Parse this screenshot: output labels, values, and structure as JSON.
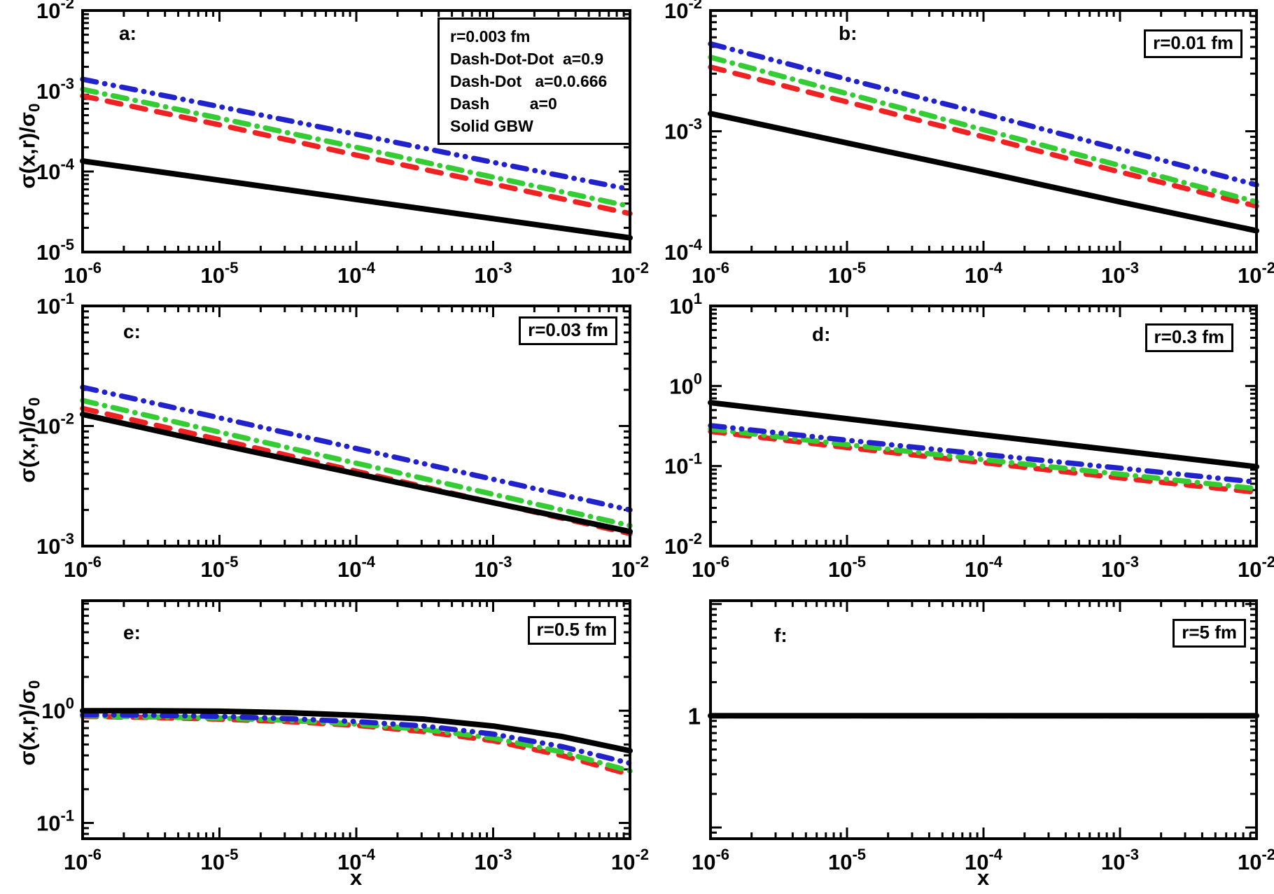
{
  "figure": {
    "x_axis_title": "x",
    "y_axis_title": {
      "main": "σ(x,r)/σ",
      "sub": "0"
    }
  },
  "legend": {
    "lines": [
      "r=0.003 fm",
      "Dash-Dot-Dot  a=0.9",
      "Dash-Dot   a=0.0.666",
      "Dash         a=0",
      "Solid GBW"
    ]
  },
  "colors": {
    "dash_dot_dot": "#2222cc",
    "dash_dot": "#33cc33",
    "dash": "#ee2222",
    "solid": "#000000"
  },
  "chart_data": [
    {
      "id": "a",
      "type": "line",
      "panel_label": "a:",
      "box_label": "r=0.003 fm (in legend)",
      "x_axis": {
        "scale": "log",
        "range_exp": [
          -6,
          -2
        ],
        "tick_exps": [
          -6,
          -5,
          -4,
          -3,
          -2
        ]
      },
      "y_axis": {
        "scale": "log",
        "range_exp": [
          -5,
          -2
        ],
        "tick_exps": [
          -5,
          -4,
          -3,
          -2
        ]
      },
      "series": [
        {
          "name": "Dash a=0",
          "style": "dash",
          "color": "#ee2222",
          "x_exp": [
            -6,
            -5,
            -4,
            -3,
            -2
          ],
          "y": [
            0.00087,
            0.00038,
            0.00016,
            7e-05,
            3e-05
          ]
        },
        {
          "name": "Dash-Dot a=0.0.666",
          "style": "dash-dot",
          "color": "#33cc33",
          "x_exp": [
            -6,
            -5,
            -4,
            -3,
            -2
          ],
          "y": [
            0.00105,
            0.00046,
            0.0002,
            8.5e-05,
            3.7e-05
          ]
        },
        {
          "name": "Dash-Dot-Dot a=0.9",
          "style": "dash-dot-dot",
          "color": "#2222cc",
          "x_exp": [
            -6,
            -5,
            -4,
            -3,
            -2
          ],
          "y": [
            0.0014,
            0.00064,
            0.00029,
            0.00013,
            6e-05
          ]
        },
        {
          "name": "Solid GBW",
          "style": "solid",
          "color": "#000000",
          "x_exp": [
            -6,
            -5,
            -4,
            -3,
            -2
          ],
          "y": [
            0.000135,
            7.8e-05,
            4.5e-05,
            2.6e-05,
            1.5e-05
          ]
        }
      ]
    },
    {
      "id": "b",
      "type": "line",
      "panel_label": "b:",
      "box_label": "r=0.01 fm",
      "x_axis": {
        "scale": "log",
        "range_exp": [
          -6,
          -2
        ],
        "tick_exps": [
          -6,
          -5,
          -4,
          -3,
          -2
        ]
      },
      "y_axis": {
        "scale": "log",
        "range_exp": [
          -4,
          -2
        ],
        "tick_exps": [
          -4,
          -3,
          -2
        ]
      },
      "series": [
        {
          "name": "Dash a=0",
          "style": "dash",
          "color": "#ee2222",
          "x_exp": [
            -6,
            -5,
            -4,
            -3,
            -2
          ],
          "y": [
            0.0034,
            0.00175,
            0.0009,
            0.00046,
            0.00024
          ]
        },
        {
          "name": "Dash-Dot a=0.0.666",
          "style": "dash-dot",
          "color": "#33cc33",
          "x_exp": [
            -6,
            -5,
            -4,
            -3,
            -2
          ],
          "y": [
            0.0041,
            0.00205,
            0.00103,
            0.00052,
            0.00026
          ]
        },
        {
          "name": "Dash-Dot-Dot a=0.9",
          "style": "dash-dot-dot",
          "color": "#2222cc",
          "x_exp": [
            -6,
            -5,
            -4,
            -3,
            -2
          ],
          "y": [
            0.0053,
            0.0027,
            0.0014,
            0.00071,
            0.00036
          ]
        },
        {
          "name": "Solid GBW",
          "style": "solid",
          "color": "#000000",
          "x_exp": [
            -6,
            -5,
            -4,
            -3,
            -2
          ],
          "y": [
            0.0014,
            0.0008,
            0.00046,
            0.00026,
            0.00015
          ]
        }
      ]
    },
    {
      "id": "c",
      "type": "line",
      "panel_label": "c:",
      "box_label": "r=0.03 fm",
      "x_axis": {
        "scale": "log",
        "range_exp": [
          -6,
          -2
        ],
        "tick_exps": [
          -6,
          -5,
          -4,
          -3,
          -2
        ]
      },
      "y_axis": {
        "scale": "log",
        "range_exp": [
          -3,
          -1
        ],
        "tick_exps": [
          -3,
          -2,
          -1
        ]
      },
      "series": [
        {
          "name": "Dash a=0",
          "style": "dash",
          "color": "#ee2222",
          "x_exp": [
            -6,
            -5,
            -4,
            -3,
            -2
          ],
          "y": [
            0.014,
            0.0077,
            0.0042,
            0.0023,
            0.00127
          ]
        },
        {
          "name": "Dash-Dot a=0.0.666",
          "style": "dash-dot",
          "color": "#33cc33",
          "x_exp": [
            -6,
            -5,
            -4,
            -3,
            -2
          ],
          "y": [
            0.0163,
            0.0089,
            0.0049,
            0.0027,
            0.00148
          ]
        },
        {
          "name": "Dash-Dot-Dot a=0.9",
          "style": "dash-dot-dot",
          "color": "#2222cc",
          "x_exp": [
            -6,
            -5,
            -4,
            -3,
            -2
          ],
          "y": [
            0.021,
            0.0117,
            0.0065,
            0.0036,
            0.002
          ]
        },
        {
          "name": "Solid GBW",
          "style": "solid",
          "color": "#000000",
          "x_exp": [
            -6,
            -5,
            -4,
            -3,
            -2
          ],
          "y": [
            0.0125,
            0.007,
            0.004,
            0.0023,
            0.00132
          ]
        }
      ]
    },
    {
      "id": "d",
      "type": "line",
      "panel_label": "d:",
      "box_label": "r=0.3 fm",
      "x_axis": {
        "scale": "log",
        "range_exp": [
          -6,
          -2
        ],
        "tick_exps": [
          -6,
          -5,
          -4,
          -3,
          -2
        ]
      },
      "y_axis": {
        "scale": "log",
        "range_exp": [
          -2,
          1
        ],
        "tick_exps": [
          -2,
          -1,
          0,
          1
        ]
      },
      "series": [
        {
          "name": "Dash a=0",
          "style": "dash",
          "color": "#ee2222",
          "x_exp": [
            -6,
            -5,
            -4,
            -3,
            -2
          ],
          "y": [
            0.27,
            0.17,
            0.11,
            0.071,
            0.047
          ]
        },
        {
          "name": "Dash-Dot a=0.0.666",
          "style": "dash-dot",
          "color": "#33cc33",
          "x_exp": [
            -6,
            -5,
            -4,
            -3,
            -2
          ],
          "y": [
            0.29,
            0.185,
            0.12,
            0.079,
            0.052
          ]
        },
        {
          "name": "Dash-Dot-Dot a=0.9",
          "style": "dash-dot-dot",
          "color": "#2222cc",
          "x_exp": [
            -6,
            -5,
            -4,
            -3,
            -2
          ],
          "y": [
            0.32,
            0.21,
            0.14,
            0.094,
            0.063
          ]
        },
        {
          "name": "Solid GBW",
          "style": "solid",
          "color": "#000000",
          "x_exp": [
            -6,
            -5,
            -4,
            -3,
            -2
          ],
          "y": [
            0.62,
            0.39,
            0.245,
            0.155,
            0.098
          ]
        }
      ]
    },
    {
      "id": "e",
      "type": "line",
      "panel_label": "e:",
      "box_label": "r=0.5 fm",
      "x_axis": {
        "scale": "log",
        "range_exp": [
          -6,
          -2
        ],
        "tick_exps": [
          -6,
          -5,
          -4,
          -3,
          -2
        ]
      },
      "y_axis": {
        "scale": "log",
        "range_exp": [
          -1.14,
          0.98
        ],
        "tick_exps": [
          -1,
          0
        ]
      },
      "series": [
        {
          "name": "Dash a=0",
          "style": "dash",
          "color": "#ee2222",
          "x_exp": [
            -6,
            -5.5,
            -5,
            -4.5,
            -4,
            -3.5,
            -3,
            -2.5,
            -2
          ],
          "y": [
            0.89,
            0.87,
            0.84,
            0.8,
            0.74,
            0.65,
            0.54,
            0.4,
            0.27
          ]
        },
        {
          "name": "Dash-Dot a=0.0.666",
          "style": "dash-dot",
          "color": "#33cc33",
          "x_exp": [
            -6,
            -5.5,
            -5,
            -4.5,
            -4,
            -3.5,
            -3,
            -2.5,
            -2
          ],
          "y": [
            0.9,
            0.88,
            0.86,
            0.82,
            0.76,
            0.68,
            0.57,
            0.43,
            0.29
          ]
        },
        {
          "name": "Dash-Dot-Dot a=0.9",
          "style": "dash-dot-dot",
          "color": "#2222cc",
          "x_exp": [
            -6,
            -5.5,
            -5,
            -4.5,
            -4,
            -3.5,
            -3,
            -2.5,
            -2
          ],
          "y": [
            0.92,
            0.91,
            0.89,
            0.85,
            0.8,
            0.73,
            0.62,
            0.48,
            0.34
          ]
        },
        {
          "name": "Solid GBW",
          "style": "solid",
          "color": "#000000",
          "x_exp": [
            -6,
            -5.5,
            -5,
            -4.5,
            -4,
            -3.5,
            -3,
            -2.5,
            -2
          ],
          "y": [
            1.0,
            1.0,
            0.99,
            0.96,
            0.91,
            0.84,
            0.73,
            0.59,
            0.44
          ]
        }
      ]
    },
    {
      "id": "f",
      "type": "line",
      "panel_label": "f:",
      "box_label": "r=5 fm",
      "x_axis": {
        "scale": "log",
        "range_exp": [
          -6,
          -2
        ],
        "tick_exps": [
          -6,
          -5,
          -4,
          -3,
          -2
        ]
      },
      "y_axis": {
        "scale": "log",
        "range_exp": [
          -1.1,
          1.03
        ],
        "tick_exps": [
          0
        ],
        "tick_plain": true
      },
      "series": [
        {
          "name": "Dash a=0",
          "style": "dash",
          "color": "#ee2222",
          "x_exp": [
            -6,
            -2
          ],
          "y": [
            1.0,
            1.0
          ]
        },
        {
          "name": "Dash-Dot a=0.0.666",
          "style": "dash-dot",
          "color": "#33cc33",
          "x_exp": [
            -6,
            -2
          ],
          "y": [
            1.0,
            1.0
          ]
        },
        {
          "name": "Dash-Dot-Dot a=0.9",
          "style": "dash-dot-dot",
          "color": "#2222cc",
          "x_exp": [
            -6,
            -2
          ],
          "y": [
            1.0,
            1.0
          ]
        },
        {
          "name": "Solid GBW",
          "style": "solid",
          "color": "#000000",
          "x_exp": [
            -6,
            -2
          ],
          "y": [
            1.0,
            1.0
          ]
        }
      ]
    }
  ]
}
